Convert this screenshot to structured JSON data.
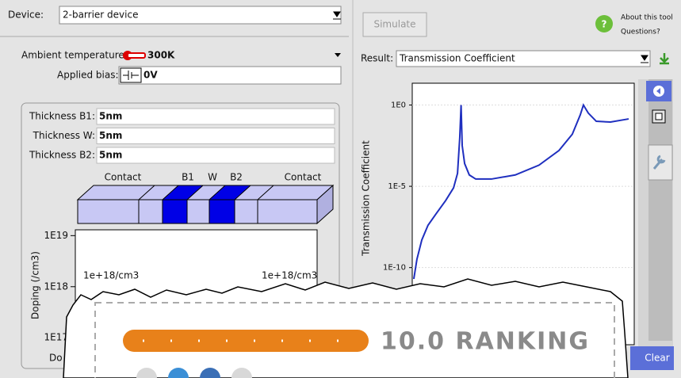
{
  "device": {
    "label": "Device:",
    "value": "2-barrier device"
  },
  "simulate_button": "Simulate",
  "help": {
    "line1": "About this tool",
    "line2": "Questions?"
  },
  "ambient_temperature": {
    "label": "Ambient temperature:",
    "value": "300K"
  },
  "applied_bias": {
    "label": "Applied bias:",
    "value": "0V"
  },
  "thickness": [
    {
      "label": "Thickness B1:",
      "value": "5nm"
    },
    {
      "label": "Thickness W:",
      "value": "5nm"
    },
    {
      "label": "Thickness B2:",
      "value": "5nm"
    }
  ],
  "structure_labels": [
    "Contact",
    "B1",
    "W",
    "B2",
    "Contact"
  ],
  "doping_chart": {
    "y_label": "Doping (/cm3)",
    "log_scale": true,
    "ylim": [
      2.5e+16,
      1.3e+19
    ],
    "yticks": [
      {
        "value": 1e+19,
        "label": "1E19"
      },
      {
        "value": 1e+18,
        "label": "1E18"
      },
      {
        "value": 1e+17,
        "label": "1E17"
      }
    ],
    "annotations": [
      "1e+18/cm3",
      "1e+18/cm3"
    ],
    "x_label": "Do"
  },
  "result": {
    "label": "Result:",
    "value": "Transmission Coefficient"
  },
  "chart_data": {
    "type": "line",
    "y_label": "Transmission Coefficient",
    "log_scale": true,
    "color": "#1f2fbf",
    "xlim": [
      0,
      100
    ],
    "ylim": [
      1.8e-15,
      22
    ],
    "yticks": [
      {
        "value": 1,
        "label": "1E0"
      },
      {
        "value": 1e-05,
        "label": "1E-5"
      },
      {
        "value": 1e-10,
        "label": "1E-10"
      }
    ],
    "grid": true,
    "x": [
      0.7,
      2.1,
      4.3,
      7.1,
      10.7,
      15,
      18.6,
      20.4,
      21.4,
      22,
      22.5,
      23.6,
      25.7,
      28.6,
      35.7,
      46.4,
      57.1,
      66.1,
      72.1,
      75.7,
      77.1,
      79.3,
      82.9,
      89.3,
      97.5
    ],
    "values": [
      2e-11,
      3.2e-10,
      5e-09,
      4e-08,
      2e-07,
      1.3e-06,
      8e-06,
      6.3e-05,
      0.01,
      1,
      0.0032,
      0.00025,
      5e-05,
      2.8e-05,
      2.8e-05,
      5e-05,
      0.0002,
      0.0016,
      0.016,
      0.25,
      1,
      0.32,
      0.1,
      0.09,
      0.14
    ]
  },
  "clear_button": "Clear",
  "ranking": "10.0 RANKING"
}
